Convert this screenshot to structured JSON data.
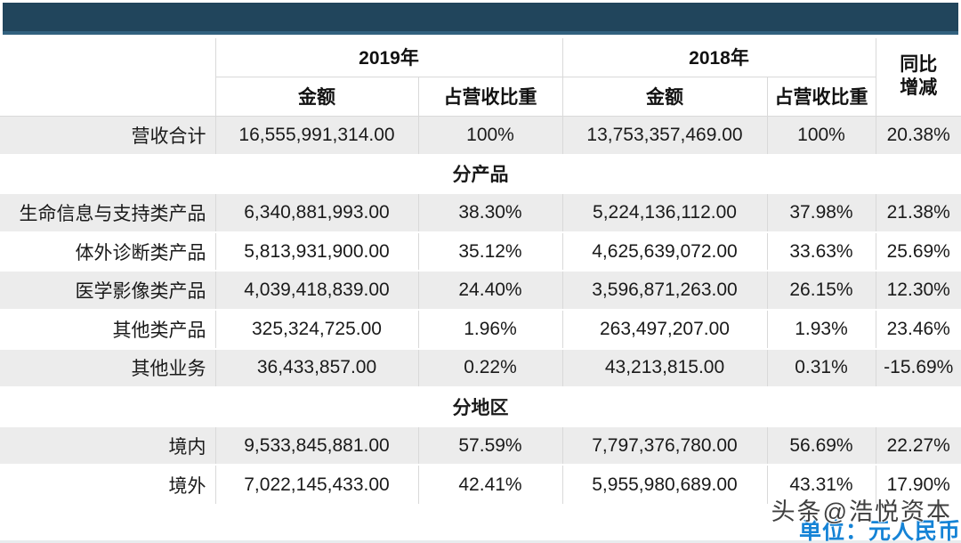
{
  "banner": {
    "bg_color": "#21455c",
    "edge_color": "#32617e"
  },
  "header": {
    "year_2019": "2019年",
    "year_2018": "2018年",
    "yoy_line1": "同比",
    "yoy_line2": "增减",
    "amount_2019": "金额",
    "share_2019": "占营收比重",
    "amount_2018": "金额",
    "share_2018": "占营收比重"
  },
  "chart_data": {
    "type": "table",
    "column_groups": [
      "2019年",
      "2018年",
      "同比增减"
    ],
    "sub_headers": [
      "金额",
      "占营收比重",
      "金额",
      "占营收比重"
    ],
    "rows": [
      {
        "kind": "data",
        "label": "营收合计",
        "v": [
          "16,555,991,314.00",
          "100%",
          "13,753,357,469.00",
          "100%",
          "20.38%"
        ]
      },
      {
        "kind": "section",
        "label": "分产品"
      },
      {
        "kind": "data",
        "label": "生命信息与支持类产品",
        "v": [
          "6,340,881,993.00",
          "38.30%",
          "5,224,136,112.00",
          "37.98%",
          "21.38%"
        ]
      },
      {
        "kind": "data",
        "label": "体外诊断类产品",
        "v": [
          "5,813,931,900.00",
          "35.12%",
          "4,625,639,072.00",
          "33.63%",
          "25.69%"
        ]
      },
      {
        "kind": "data",
        "label": "医学影像类产品",
        "v": [
          "4,039,418,839.00",
          "24.40%",
          "3,596,871,263.00",
          "26.15%",
          "12.30%"
        ]
      },
      {
        "kind": "data",
        "label": "其他类产品",
        "v": [
          "325,324,725.00",
          "1.96%",
          "263,497,207.00",
          "1.93%",
          "23.46%"
        ]
      },
      {
        "kind": "data",
        "label": "其他业务",
        "v": [
          "36,433,857.00",
          "0.22%",
          "43,213,815.00",
          "0.31%",
          "-15.69%"
        ]
      },
      {
        "kind": "section",
        "label": "分地区"
      },
      {
        "kind": "data",
        "label": "境内",
        "v": [
          "9,533,845,881.00",
          "57.59%",
          "7,797,376,780.00",
          "56.69%",
          "22.27%"
        ]
      },
      {
        "kind": "data",
        "label": "境外",
        "v": [
          "7,022,145,433.00",
          "42.41%",
          "5,955,980,689.00",
          "43.31%",
          "17.90%"
        ]
      }
    ]
  },
  "footer": {
    "watermark": "头条@浩悦资本",
    "unit_note": "单位：元人民币",
    "unit_color": "#1583d6"
  },
  "colors": {
    "row_alt": "#ececec",
    "grid_line": "#d9d9d9",
    "text": "#1a1a1a"
  }
}
